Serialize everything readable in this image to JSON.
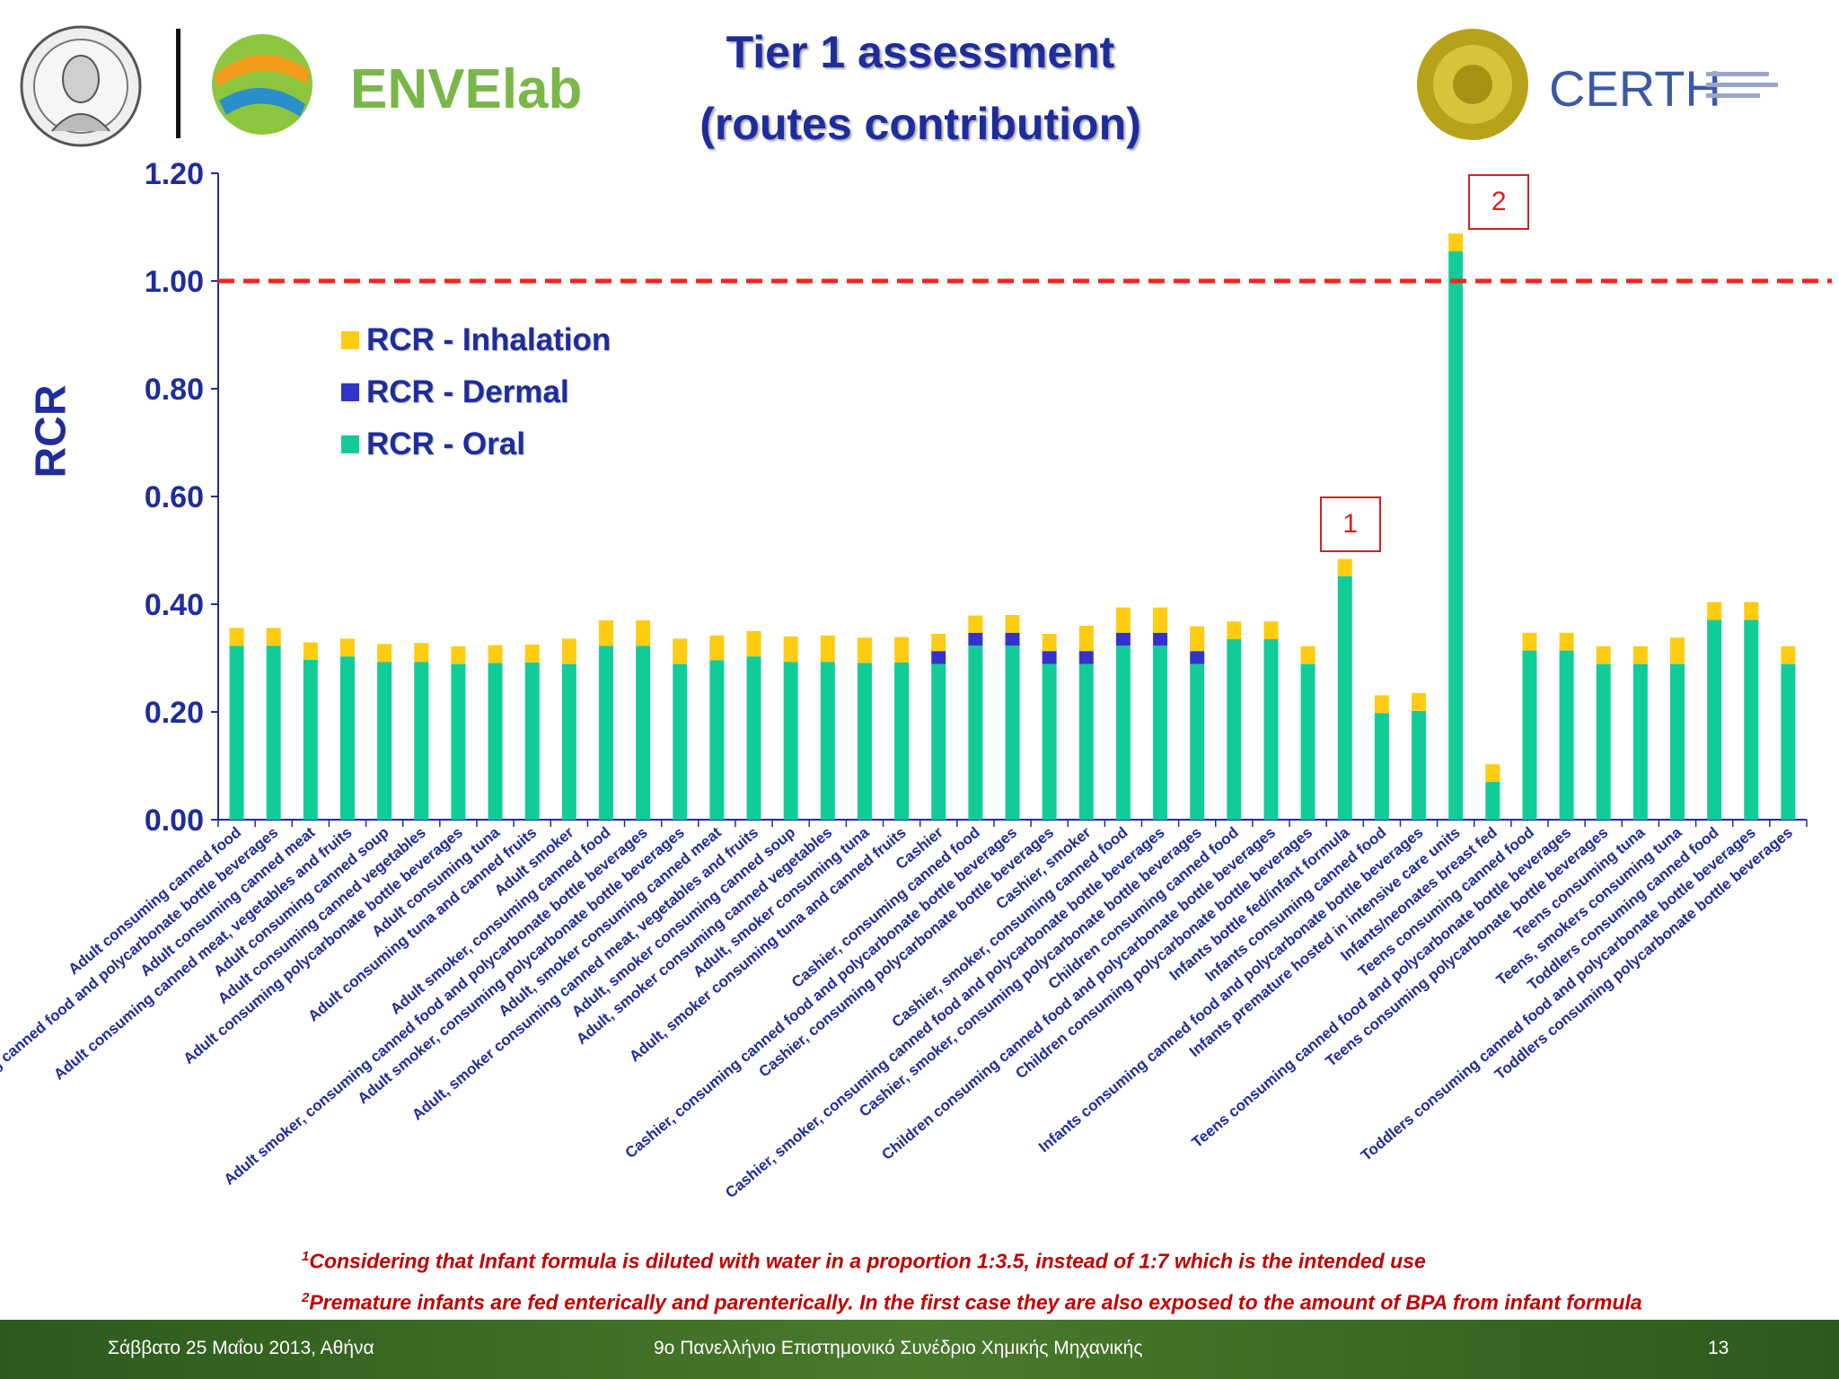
{
  "header": {
    "title_line1": "Tier 1 assessment",
    "title_line2": "(routes contribution)",
    "logos": [
      "auth-seal-logo",
      "envlab-logo",
      "certh-logo"
    ],
    "envlab_text": "ENVElab",
    "certh_text": "CERTH"
  },
  "chart_data": {
    "type": "bar",
    "stacked": true,
    "ylabel": "RCR",
    "xlabel": "",
    "ylim": [
      0,
      1.2
    ],
    "yticks": [
      "0.00",
      "0.20",
      "0.40",
      "0.60",
      "0.80",
      "1.00",
      "1.20"
    ],
    "threshold": 1.0,
    "legend_placement": "upper-left",
    "categories": [
      "Adult consuming canned food",
      "Adult consuming canned food and polycarbonate bottle beverages",
      "Adult consuming canned meat",
      "Adult consuming canned meat, vegetables and fruits",
      "Adult consuming canned soup",
      "Adult consuming canned vegetables",
      "Adult consuming polycarbonate bottle beverages",
      "Adult consuming tuna",
      "Adult consuming tuna and canned fruits",
      "Adult smoker",
      "Adult smoker, consuming canned food",
      "Adult smoker, consuming canned food and polycarbonate bottle beverages",
      "Adult smoker, consuming polycarbonate bottle beverages",
      "Adult, smoker consuming canned meat",
      "Adult, smoker consuming canned meat, vegetables and fruits",
      "Adult, smoker consuming canned soup",
      "Adult, smoker consuming canned vegetables",
      "Adult, smoker consuming tuna",
      "Adult, smoker consuming tuna and canned fruits",
      "Cashier",
      "Cashier, consuming canned food",
      "Cashier, consuming canned food and polycarbonate bottle beverages",
      "Cashier, consuming polycarbonate bottle beverages",
      "Cashier, smoker",
      "Cashier, smoker, consuming canned food",
      "Cashier, smoker, consuming canned food and polycarbonate bottle beverages",
      "Cashier, smoker, consuming polycarbonate bottle beverages",
      "Children consuming canned food",
      "Children consuming canned food and polycarbonate bottle beverages",
      "Children consuming polycarbonate bottle beverages",
      "Infants bottle fed/infant formula",
      "Infants consuming canned food",
      "Infants consuming canned food and polycarbonate bottle beverages",
      "Infants premature  hosted in intensive care units",
      "Infants/neonates breast fed",
      "Teens consuming canned food",
      "Teens consuming canned food and polycarbonate bottle beverages",
      "Teens consuming polycarbonate bottle beverages",
      "Teens consuming tuna",
      "Teens, smokers consuming tuna",
      "Toddlers consuming canned food",
      "Toddlers consuming canned food and polycarbonate bottle beverages",
      "Toddlers consuming polycarbonate bottle beverages"
    ],
    "series": [
      {
        "name": "RCR - Oral",
        "color": "#11cc99",
        "values": [
          0.323,
          0.323,
          0.297,
          0.303,
          0.293,
          0.293,
          0.289,
          0.291,
          0.292,
          0.289,
          0.323,
          0.323,
          0.289,
          0.296,
          0.303,
          0.293,
          0.293,
          0.291,
          0.292,
          0.289,
          0.323,
          0.323,
          0.289,
          0.289,
          0.323,
          0.323,
          0.289,
          0.335,
          0.335,
          0.289,
          0.452,
          0.198,
          0.202,
          1.055,
          0.07,
          0.314,
          0.314,
          0.289,
          0.289,
          0.289,
          0.371,
          0.371,
          0.289
        ]
      },
      {
        "name": "RCR - Dermal",
        "color": "#3333cc",
        "values": [
          0,
          0,
          0,
          0,
          0,
          0,
          0,
          0,
          0,
          0,
          0,
          0,
          0,
          0,
          0,
          0,
          0,
          0,
          0,
          0.024,
          0.024,
          0.024,
          0.024,
          0.024,
          0.024,
          0.024,
          0.024,
          0,
          0,
          0,
          0,
          0,
          0,
          0,
          0,
          0,
          0,
          0,
          0,
          0,
          0,
          0,
          0
        ]
      },
      {
        "name": "RCR - Inhalation",
        "color": "#ffcc11",
        "values": [
          0.033,
          0.033,
          0.032,
          0.033,
          0.033,
          0.035,
          0.033,
          0.033,
          0.033,
          0.047,
          0.047,
          0.047,
          0.047,
          0.046,
          0.047,
          0.047,
          0.049,
          0.047,
          0.047,
          0.032,
          0.032,
          0.033,
          0.032,
          0.047,
          0.047,
          0.047,
          0.046,
          0.033,
          0.033,
          0.033,
          0.032,
          0.033,
          0.033,
          0.033,
          0.033,
          0.033,
          0.033,
          0.033,
          0.033,
          0.049,
          0.033,
          0.033,
          0.033
        ]
      }
    ],
    "legend_order": [
      "RCR - Inhalation",
      "RCR - Dermal",
      "RCR - Oral"
    ],
    "annotations": [
      {
        "label": "1",
        "category_index": 30
      },
      {
        "label": "2",
        "category_index": 33
      }
    ]
  },
  "notes": {
    "note1_mark": "1",
    "note1": "Considering that Infant formula is diluted with water in a proportion 1:3.5, instead of 1:7 which is the intended use",
    "note2_mark": "2",
    "note2": "Premature infants are fed enterically and parenterically. In the first case they are also exposed to the amount of BPA from infant formula"
  },
  "footer": {
    "date": "Σάββατο 25 Μαΐου 2013, Αθήνα",
    "conference": "9ο Πανελλήνιο Επιστημονικό Συνέδριο Χημικής Μηχανικής",
    "page_number": "13"
  }
}
